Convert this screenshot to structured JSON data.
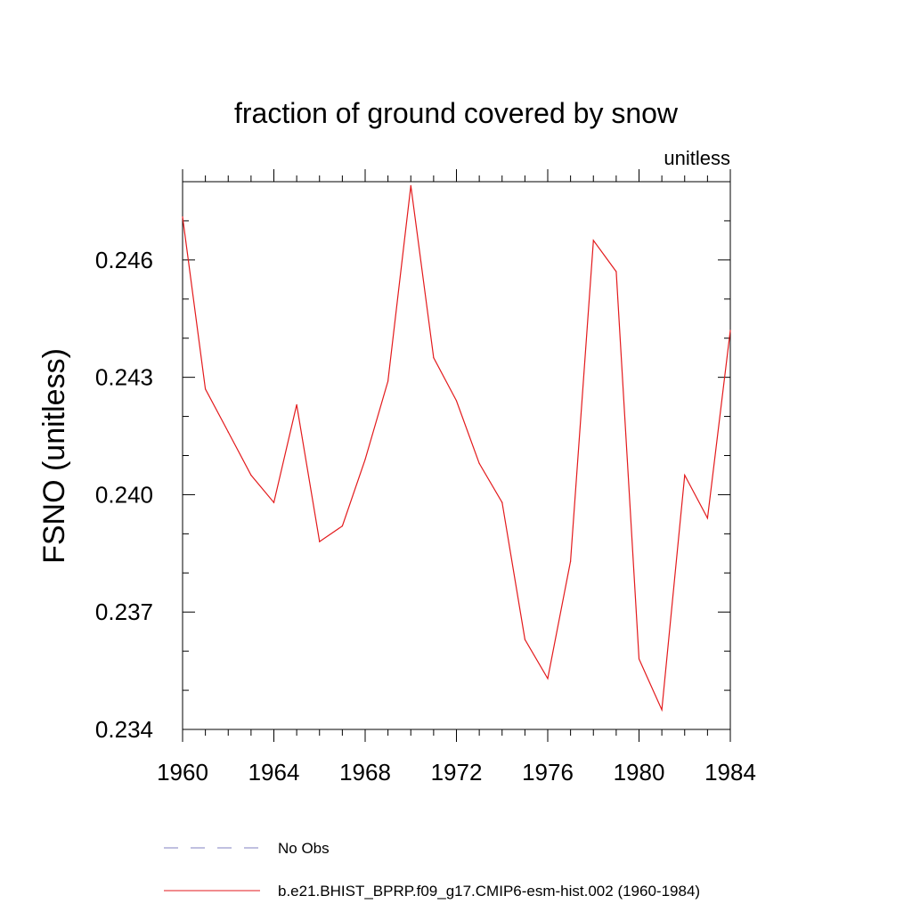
{
  "chart_data": {
    "type": "line",
    "title": "fraction of ground covered by snow",
    "units_label": "unitless",
    "ylabel": "FSNO  (unitless)",
    "xlabel": "",
    "xlim": [
      1960,
      1984
    ],
    "ylim": [
      0.234,
      0.248
    ],
    "x_ticks": [
      1960,
      1964,
      1968,
      1972,
      1976,
      1980,
      1984
    ],
    "x_tick_labels": [
      "1960",
      "1964",
      "1968",
      "1972",
      "1976",
      "1980",
      "1984"
    ],
    "y_ticks": [
      0.234,
      0.237,
      0.24,
      0.243,
      0.246
    ],
    "y_tick_labels": [
      "0.234",
      "0.237",
      "0.240",
      "0.243",
      "0.246"
    ],
    "series": [
      {
        "name": "b.e21.BHIST_BPRP.f09_g17.CMIP6-esm-hist.002 (1960-1984)",
        "color": "#e31a1c",
        "style": "solid",
        "x": [
          1960,
          1961,
          1962,
          1963,
          1964,
          1965,
          1966,
          1967,
          1968,
          1969,
          1970,
          1971,
          1972,
          1973,
          1974,
          1975,
          1976,
          1977,
          1978,
          1979,
          1980,
          1981,
          1982,
          1983,
          1984
        ],
        "y": [
          0.2471,
          0.2427,
          0.2416,
          0.2405,
          0.2398,
          0.2423,
          0.2388,
          0.2392,
          0.2409,
          0.2429,
          0.2479,
          0.2435,
          0.2424,
          0.2408,
          0.2398,
          0.2363,
          0.2353,
          0.2383,
          0.2465,
          0.2457,
          0.2358,
          0.2345,
          0.2405,
          0.2394,
          0.2442
        ]
      }
    ],
    "legend": {
      "placement": "bottom",
      "entries": [
        {
          "label": "No Obs",
          "color": "#8080c0",
          "style": "dashed"
        },
        {
          "label": "b.e21.BHIST_BPRP.f09_g17.CMIP6-esm-hist.002 (1960-1984)",
          "color": "#e31a1c",
          "style": "solid"
        }
      ]
    }
  }
}
